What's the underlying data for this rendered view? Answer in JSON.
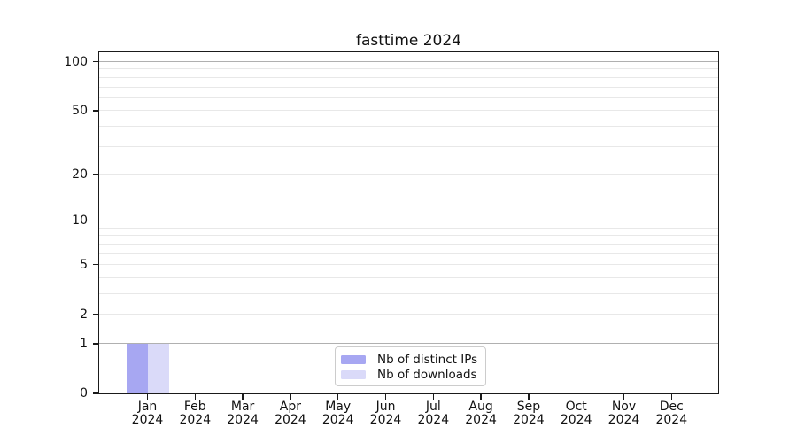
{
  "title": "fasttime 2024",
  "chart_data": {
    "type": "bar",
    "title": "fasttime 2024",
    "categories": [
      "Jan",
      "Feb",
      "Mar",
      "Apr",
      "May",
      "Jun",
      "Jul",
      "Aug",
      "Sep",
      "Oct",
      "Nov",
      "Dec"
    ],
    "x_year_label": "2024",
    "series": [
      {
        "name": "Nb of distinct IPs",
        "color": "#a7a7f2",
        "values": [
          1,
          0,
          0,
          0,
          0,
          0,
          0,
          0,
          0,
          0,
          0,
          0
        ]
      },
      {
        "name": "Nb of downloads",
        "color": "#dadaf9",
        "values": [
          1,
          0,
          0,
          0,
          0,
          0,
          0,
          0,
          0,
          0,
          0,
          0
        ]
      }
    ],
    "y_axis": {
      "scale": "log1p",
      "ylim": [
        0,
        114
      ],
      "tick_values": [
        100,
        50,
        20,
        10,
        5,
        2,
        1,
        0
      ],
      "tick_labels": [
        "100",
        "50",
        "20",
        "10",
        "5",
        "2",
        "1",
        "0"
      ],
      "major_gridlines": [
        1,
        10,
        100
      ],
      "minor_gridlines": [
        2,
        3,
        4,
        5,
        6,
        7,
        8,
        9,
        20,
        30,
        40,
        50,
        60,
        70,
        80,
        90
      ]
    },
    "xlabel": "",
    "ylabel": "",
    "grid": true,
    "legend_position": "lower center"
  },
  "colors": {
    "background": "#ffffff",
    "spine": "#1a1a1a",
    "major_grid": "#b0b0b0",
    "minor_grid": "#e8e8e8",
    "legend_border": "#cccccc",
    "bar_distinct_ips": "#a7a7f2",
    "bar_downloads": "#dadaf9"
  }
}
